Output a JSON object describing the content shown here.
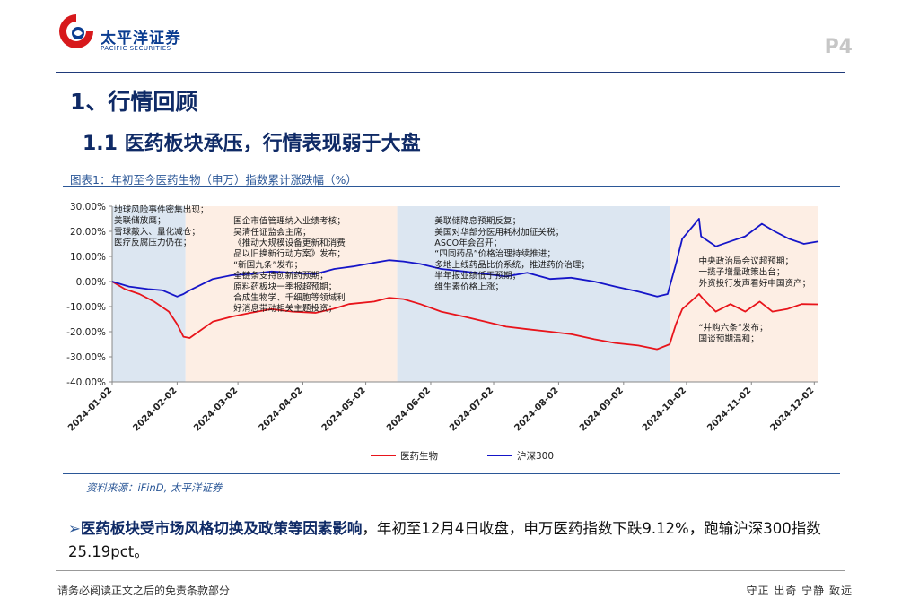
{
  "header": {
    "brand_cn": "太平洋证券",
    "brand_en": "PACIFIC SECURITIES",
    "page_number": "P4",
    "logo_icon": "pacific-securities-logo-icon",
    "colors": {
      "brand_red": "#d7191c",
      "brand_blue": "#0b3d91"
    }
  },
  "headings": {
    "h1": "1、行情回顾",
    "h2": "1.1 医药板块承压，行情表现弱于大盘"
  },
  "figure": {
    "caption": "图表1：年初至今医药生物（申万）指数累计涨跌幅（%）",
    "source": "资料来源：iFinD, 太平洋证券"
  },
  "chart_data": {
    "type": "line",
    "x_type": "date",
    "x_ticks": [
      "2024-01-02",
      "2024-02-02",
      "2024-03-02",
      "2024-04-02",
      "2024-05-02",
      "2024-06-02",
      "2024-07-02",
      "2024-08-02",
      "2024-09-02",
      "2024-10-02",
      "2024-11-02",
      "2024-12-02"
    ],
    "y_tick_labels": [
      "30.00%",
      "20.00%",
      "10.00%",
      "0.00%",
      "-10.00%",
      "-20.00%",
      "-30.00%",
      "-40.00%"
    ],
    "ylim": [
      -40,
      30
    ],
    "grid": false,
    "legend_position": "bottom",
    "series": [
      {
        "name": "医药生物",
        "color": "#e8141b",
        "points": [
          [
            "2024-01-02",
            0
          ],
          [
            "2024-01-08",
            -3
          ],
          [
            "2024-01-15",
            -5
          ],
          [
            "2024-01-22",
            -8
          ],
          [
            "2024-01-29",
            -12
          ],
          [
            "2024-02-02",
            -17
          ],
          [
            "2024-02-05",
            -22
          ],
          [
            "2024-02-08",
            -22.5
          ],
          [
            "2024-02-19",
            -16
          ],
          [
            "2024-02-28",
            -14
          ],
          [
            "2024-03-08",
            -12.5
          ],
          [
            "2024-03-18",
            -11
          ],
          [
            "2024-03-28",
            -12
          ],
          [
            "2024-04-08",
            -12.5
          ],
          [
            "2024-04-16",
            -11
          ],
          [
            "2024-04-24",
            -9
          ],
          [
            "2024-05-06",
            -8
          ],
          [
            "2024-05-13",
            -6.5
          ],
          [
            "2024-05-20",
            -7
          ],
          [
            "2024-05-28",
            -9
          ],
          [
            "2024-06-07",
            -12
          ],
          [
            "2024-06-18",
            -14
          ],
          [
            "2024-06-28",
            -16
          ],
          [
            "2024-07-08",
            -18
          ],
          [
            "2024-07-18",
            -19
          ],
          [
            "2024-07-29",
            -20
          ],
          [
            "2024-08-08",
            -21
          ],
          [
            "2024-08-19",
            -23
          ],
          [
            "2024-08-29",
            -24.5
          ],
          [
            "2024-09-09",
            -25.5
          ],
          [
            "2024-09-18",
            -27
          ],
          [
            "2024-09-24",
            -25
          ],
          [
            "2024-09-27",
            -17
          ],
          [
            "2024-09-30",
            -11
          ],
          [
            "2024-10-08",
            -5
          ],
          [
            "2024-10-10",
            -7
          ],
          [
            "2024-10-16",
            -12
          ],
          [
            "2024-10-23",
            -9
          ],
          [
            "2024-10-30",
            -12
          ],
          [
            "2024-11-06",
            -8
          ],
          [
            "2024-11-12",
            -12
          ],
          [
            "2024-11-19",
            -11
          ],
          [
            "2024-11-26",
            -9
          ],
          [
            "2024-12-04",
            -9.12
          ]
        ]
      },
      {
        "name": "沪深300",
        "color": "#1515c8",
        "points": [
          [
            "2024-01-02",
            0
          ],
          [
            "2024-01-10",
            -2
          ],
          [
            "2024-01-19",
            -3
          ],
          [
            "2024-01-26",
            -3.5
          ],
          [
            "2024-02-02",
            -6
          ],
          [
            "2024-02-05",
            -5
          ],
          [
            "2024-02-08",
            -3.5
          ],
          [
            "2024-02-19",
            1
          ],
          [
            "2024-02-28",
            2.5
          ],
          [
            "2024-03-08",
            3
          ],
          [
            "2024-03-18",
            4
          ],
          [
            "2024-03-28",
            3.5
          ],
          [
            "2024-04-08",
            3
          ],
          [
            "2024-04-17",
            5
          ],
          [
            "2024-04-26",
            6
          ],
          [
            "2024-05-06",
            7.5
          ],
          [
            "2024-05-13",
            8.5
          ],
          [
            "2024-05-20",
            8
          ],
          [
            "2024-05-28",
            7
          ],
          [
            "2024-06-07",
            5
          ],
          [
            "2024-06-18",
            4
          ],
          [
            "2024-06-28",
            3
          ],
          [
            "2024-07-08",
            2
          ],
          [
            "2024-07-18",
            3.5
          ],
          [
            "2024-07-29",
            1
          ],
          [
            "2024-08-08",
            1.5
          ],
          [
            "2024-08-19",
            0
          ],
          [
            "2024-08-29",
            -2
          ],
          [
            "2024-09-09",
            -4
          ],
          [
            "2024-09-18",
            -6
          ],
          [
            "2024-09-23",
            -5
          ],
          [
            "2024-09-24",
            -2
          ],
          [
            "2024-09-27",
            7
          ],
          [
            "2024-09-30",
            17
          ],
          [
            "2024-10-08",
            25
          ],
          [
            "2024-10-09",
            18
          ],
          [
            "2024-10-16",
            14
          ],
          [
            "2024-10-23",
            16
          ],
          [
            "2024-10-30",
            18
          ],
          [
            "2024-11-07",
            23
          ],
          [
            "2024-11-13",
            20
          ],
          [
            "2024-11-20",
            17
          ],
          [
            "2024-11-27",
            15
          ],
          [
            "2024-12-04",
            16
          ]
        ]
      }
    ],
    "shaded_periods": [
      {
        "start": "2024-01-02",
        "end": "2024-02-06",
        "color": "#dce6f1"
      },
      {
        "start": "2024-02-06",
        "end": "2024-05-17",
        "color": "#fdeee4"
      },
      {
        "start": "2024-05-17",
        "end": "2024-09-24",
        "color": "#dce6f1"
      },
      {
        "start": "2024-09-24",
        "end": "2024-12-04",
        "color": "#fdeee4"
      }
    ],
    "annotations": [
      {
        "date": "2024-01-02",
        "y": 27.5,
        "lines": [
          "地球风险事件密集出现；",
          "美联储放鹰；",
          "雪球敲入、量化减仓；",
          "医疗反腐压力仍在；"
        ]
      },
      {
        "date": "2024-02-28",
        "y": 23,
        "lines": [
          "国企市值管理纳入业绩考核；",
          "吴清任证监会主席；",
          "《推动大规模设备更新和消费",
          "品以旧换新行动方案》发布；",
          "“新国九条”发布；",
          "全链条支持创新药预期；",
          "原料药板块一季报超预期；",
          "合成生物学、千细胞等领域利",
          "好消息带动相关主题投资；"
        ]
      },
      {
        "date": "2024-06-03",
        "y": 23,
        "lines": [
          "美联储降息预期反复；",
          "美国对华部分医用耗材加征关税；",
          "ASCO年会召开；",
          "“四同药品”价格治理持续推进；",
          "多地上线药品比价系统，推进药价治理；",
          "半年报业绩低于预期；",
          "维生素价格上涨；"
        ]
      },
      {
        "date": "2024-10-07",
        "y": 7,
        "lines": [
          "中央政治局会议超预期；",
          "一揽子增量政策出台；",
          "外资投行发声看好中国资产；"
        ]
      },
      {
        "date": "2024-10-07",
        "y": -19.5,
        "lines": [
          "“并购六条”发布；",
          "国谈预期温和；"
        ]
      }
    ]
  },
  "summary": {
    "highlight": "医药板块受市场风格切换及政策等因素影响",
    "rest": "，年初至12月4日收盘，申万医药指数下跌9.12%，跑输沪深300指数25.19pct。"
  },
  "footer": {
    "disclaimer": "请务必阅读正文之后的免责条款部分",
    "motto": "守正 出奇 宁静 致远"
  }
}
